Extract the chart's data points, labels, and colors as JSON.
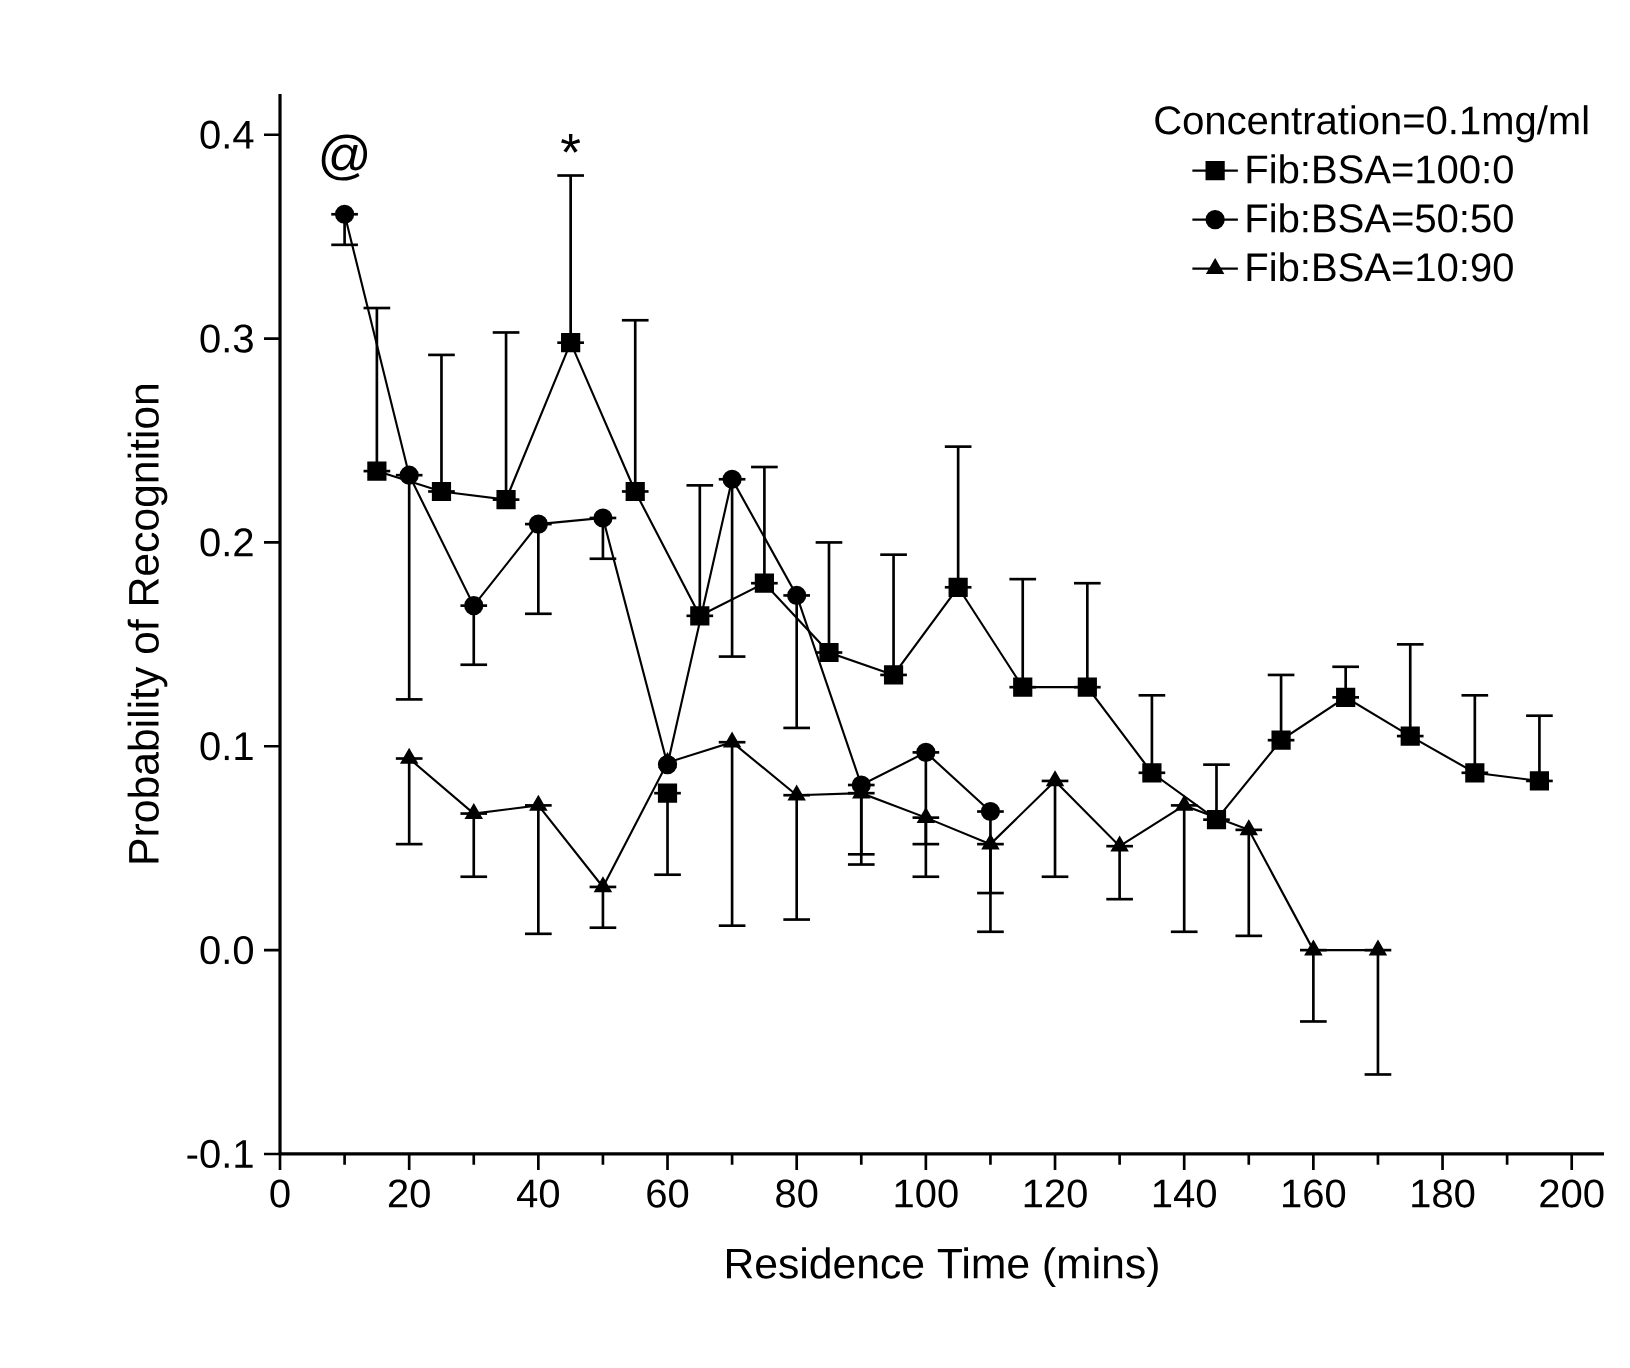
{
  "chart_data": {
    "type": "line",
    "xlabel": "Residence Time (mins)",
    "ylabel": "Probability of Recognition",
    "legend_title": "Concentration=0.1mg/ml",
    "xlim": [
      0,
      205
    ],
    "ylim": [
      -0.1,
      0.42
    ],
    "xticks": [
      0,
      20,
      40,
      60,
      80,
      100,
      120,
      140,
      160,
      180,
      200
    ],
    "yticks": [
      -0.1,
      {
        "value": 0,
        "label": "0.0"
      },
      0.1,
      0.2,
      0.3,
      0.4
    ],
    "legend": "top right",
    "grid": false,
    "line_style": "solid",
    "series": [
      {
        "name": "Fib:BSA=100:0",
        "color": "#000000",
        "marker": "square",
        "x": [
          15,
          25,
          35,
          45,
          55,
          65,
          75,
          85,
          95,
          105,
          115,
          125,
          135,
          145,
          155,
          165,
          175,
          185,
          195
        ],
        "values": [
          0.235,
          0.225,
          0.221,
          0.298,
          0.225,
          0.164,
          0.18,
          0.146,
          0.135,
          0.178,
          0.129,
          0.129,
          0.087,
          0.064,
          0.103,
          0.124,
          0.105,
          0.087,
          0.083
        ],
        "errors": [
          [
            0.235,
            0.315
          ],
          [
            0.225,
            0.292
          ],
          [
            0.221,
            0.303
          ],
          [
            0.298,
            0.38
          ],
          [
            0.225,
            0.309
          ],
          [
            0.164,
            0.228
          ],
          [
            0.18,
            0.237
          ],
          [
            0.146,
            0.2
          ],
          [
            0.135,
            0.194
          ],
          [
            0.178,
            0.247
          ],
          [
            0.129,
            0.182
          ],
          [
            0.129,
            0.18
          ],
          [
            0.087,
            0.125
          ],
          [
            0.064,
            0.091
          ],
          [
            0.103,
            0.135
          ],
          [
            0.124,
            0.139
          ],
          [
            0.105,
            0.15
          ],
          [
            0.087,
            0.125
          ],
          [
            0.083,
            0.115
          ]
        ]
      },
      {
        "name": "Fib:BSA=50:50",
        "color": "#000000",
        "marker": "circle",
        "x": [
          10,
          20,
          30,
          40,
          50,
          60,
          70,
          80,
          90,
          100,
          110
        ],
        "values": [
          0.361,
          0.233,
          0.169,
          0.209,
          0.212,
          0.091,
          0.231,
          0.174,
          0.081,
          0.097,
          0.068
        ],
        "errors": [
          [
            0.346,
            0.361
          ],
          [
            0.123,
            0.233
          ],
          [
            0.14,
            0.169
          ],
          [
            0.165,
            0.209
          ],
          [
            0.192,
            0.212
          ],
          null,
          [
            0.144,
            0.231
          ],
          [
            0.109,
            0.174
          ],
          [
            0.047,
            0.081
          ],
          [
            0.052,
            0.097
          ],
          [
            0.028,
            0.068
          ]
        ]
      },
      {
        "name": "Fib:BSA=10:90",
        "color": "#000000",
        "marker": "triangle",
        "x": [
          20,
          30,
          40,
          50,
          60,
          70,
          80,
          90,
          100,
          110,
          120,
          130,
          140,
          150,
          160,
          170
        ],
        "values": [
          0.094,
          0.067,
          0.071,
          0.031,
          0.092,
          0.102,
          0.076,
          0.077,
          0.065,
          0.052,
          0.083,
          0.051,
          0.071,
          0.059,
          0.0,
          0.0
        ],
        "errors": [
          [
            0.052,
            0.094
          ],
          [
            0.036,
            0.067
          ],
          [
            0.008,
            0.071
          ],
          [
            0.011,
            0.031
          ],
          null,
          [
            0.012,
            0.102
          ],
          [
            0.015,
            0.076
          ],
          [
            0.042,
            0.077
          ],
          [
            0.036,
            0.065
          ],
          [
            0.009,
            0.052
          ],
          [
            0.036,
            0.083
          ],
          [
            0.025,
            0.051
          ],
          [
            0.009,
            0.071
          ],
          [
            0.007,
            0.059
          ],
          [
            -0.035,
            0.0
          ],
          [
            -0.061,
            0.0
          ]
        ]
      },
      {
        "type": "scatter",
        "color": "#000000",
        "marker": "square",
        "x": [
          60
        ],
        "values": [
          0.077
        ],
        "errors": [
          [
            0.037,
            0.077
          ]
        ]
      }
    ],
    "annotations": [
      "@",
      "*"
    ]
  }
}
